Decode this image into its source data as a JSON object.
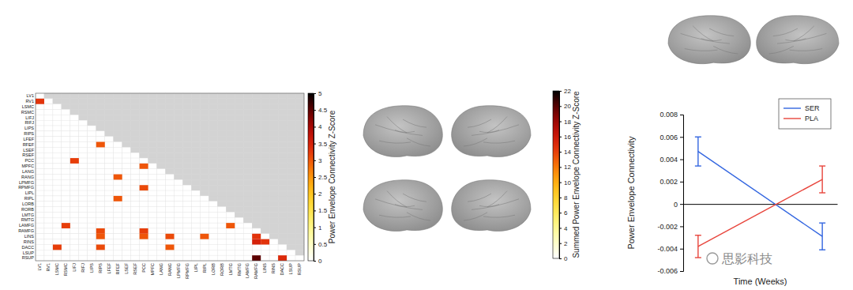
{
  "chart_data": [
    {
      "type": "heatmap",
      "labels": [
        "LV1",
        "RV1",
        "LSMC",
        "RSMC",
        "LIFJ",
        "RIFJ",
        "LIPS",
        "RIPS",
        "LFEF",
        "RFEF",
        "LSEF",
        "RSEF",
        "PCC",
        "MPFC",
        "LANG",
        "RANG",
        "LPMFG",
        "RPMFG",
        "LIPL",
        "RIPL",
        "LORB",
        "RORB",
        "LMTG",
        "RMTG",
        "LAMFG",
        "RAMFG",
        "LINS",
        "RINS",
        "DACC",
        "LSUP",
        "RSUP"
      ],
      "cells": [
        {
          "row": "RV1",
          "col": "LV1",
          "value": 3.3
        },
        {
          "row": "RFEF",
          "col": "RIPS",
          "value": 3.0
        },
        {
          "row": "PCC",
          "col": "LIFJ",
          "value": 3.2
        },
        {
          "row": "MPFC",
          "col": "PCC",
          "value": 3.0
        },
        {
          "row": "RANG",
          "col": "RFEF",
          "value": 3.0
        },
        {
          "row": "RPMFG",
          "col": "PCC",
          "value": 3.1
        },
        {
          "row": "RIPL",
          "col": "RFEF",
          "value": 3.0
        },
        {
          "row": "LAMFG",
          "col": "RSMC",
          "value": 3.2
        },
        {
          "row": "LAMFG",
          "col": "LMTG",
          "value": 3.0
        },
        {
          "row": "RAMFG",
          "col": "RIPS",
          "value": 3.1
        },
        {
          "row": "RAMFG",
          "col": "PCC",
          "value": 3.2
        },
        {
          "row": "LINS",
          "col": "RIPS",
          "value": 3.0
        },
        {
          "row": "LINS",
          "col": "PCC",
          "value": 3.0
        },
        {
          "row": "LINS",
          "col": "RANG",
          "value": 3.1
        },
        {
          "row": "LINS",
          "col": "RIPL",
          "value": 3.0
        },
        {
          "row": "LINS",
          "col": "RAMFG",
          "value": 3.3
        },
        {
          "row": "RINS",
          "col": "RAMFG",
          "value": 3.5
        },
        {
          "row": "RINS",
          "col": "LINS",
          "value": 3.3
        },
        {
          "row": "DACC",
          "col": "LSMC",
          "value": 3.2
        },
        {
          "row": "DACC",
          "col": "RIPS",
          "value": 3.1
        },
        {
          "row": "DACC",
          "col": "RANG",
          "value": 3.0
        },
        {
          "row": "RSUP",
          "col": "RAMFG",
          "value": 4.5
        },
        {
          "row": "RSUP",
          "col": "DACC",
          "value": 3.4
        }
      ],
      "colorbar": {
        "label": "Power Envelope Connectivity Z-Score",
        "range": [
          0,
          5
        ],
        "ticks": [
          0,
          0.5,
          1,
          1.5,
          2,
          2.5,
          3,
          3.5,
          4,
          4.5,
          5
        ]
      }
    },
    {
      "type": "surface_map",
      "colorbar": {
        "label": "Summed Power Envelope Connectivity Z-Score",
        "range": [
          0,
          22
        ],
        "ticks": [
          0,
          2,
          4,
          6,
          8,
          10,
          12,
          14,
          16,
          18,
          20,
          22
        ]
      }
    },
    {
      "type": "line",
      "x_label": "Time (Weeks)",
      "y_label": "Power Envelope Connectivity",
      "x": [
        0,
        1
      ],
      "xlim": [
        -0.12,
        1.12
      ],
      "ylim": [
        -0.006,
        0.008
      ],
      "yticks": [
        -0.006,
        -0.004,
        -0.002,
        0,
        0.002,
        0.004,
        0.006,
        0.008
      ],
      "tick_labels": "y",
      "legend": "upper right",
      "series": [
        {
          "name": "SER",
          "color": "#3366e0",
          "values": [
            0.0047,
            -0.0029
          ],
          "errors": [
            0.0013,
            0.0012
          ]
        },
        {
          "name": "PLA",
          "color": "#e8453c",
          "values": [
            -0.0038,
            0.0022
          ],
          "errors": [
            0.001,
            0.0012
          ]
        }
      ]
    }
  ],
  "watermark": "思影科技"
}
